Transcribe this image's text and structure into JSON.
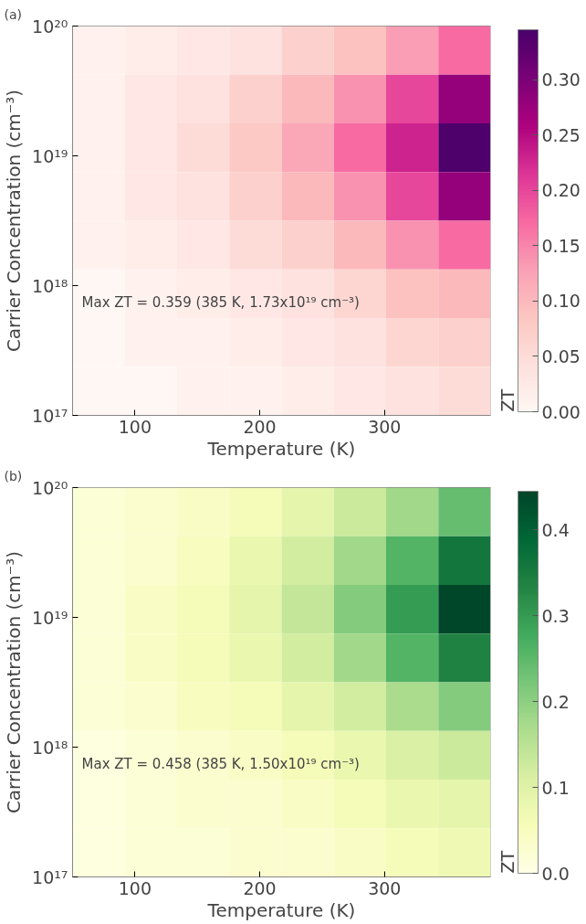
{
  "chart_data": [
    {
      "type": "heatmap",
      "title": "(a)",
      "xlabel": "Temperature (K)",
      "ylabel": "Carrier Concentration (cm⁻³)",
      "clabel": "ZT",
      "cells": [
        [
          0.01,
          0.02,
          0.03,
          0.04,
          0.07,
          0.09,
          0.13,
          0.17
        ],
        [
          0.01,
          0.03,
          0.04,
          0.07,
          0.1,
          0.14,
          0.2,
          0.28
        ],
        [
          0.01,
          0.03,
          0.05,
          0.08,
          0.12,
          0.17,
          0.23,
          0.34
        ],
        [
          0.01,
          0.03,
          0.04,
          0.07,
          0.1,
          0.14,
          0.2,
          0.28
        ],
        [
          0.01,
          0.02,
          0.03,
          0.05,
          0.07,
          0.1,
          0.14,
          0.17
        ],
        [
          0.0,
          0.01,
          0.02,
          0.03,
          0.04,
          0.06,
          0.09,
          0.1
        ],
        [
          0.0,
          0.01,
          0.01,
          0.02,
          0.03,
          0.04,
          0.06,
          0.07
        ],
        [
          0.0,
          0.0,
          0.01,
          0.01,
          0.02,
          0.03,
          0.04,
          0.05
        ]
      ],
      "xlim": [
        50,
        385
      ],
      "xticks": [
        100,
        200,
        300
      ],
      "ylim": [
        1e+17,
        1e+20
      ],
      "log": "y",
      "yticks": [
        {
          "value": 1e+17,
          "label": "10¹⁷"
        },
        {
          "value": 1e+18,
          "label": "10¹⁸"
        },
        {
          "value": 1e+19,
          "label": "10¹⁹"
        },
        {
          "value": 1e+20,
          "label": "10²⁰"
        }
      ],
      "clim": [
        0,
        0.345
      ],
      "cticks": [
        {
          "value": 0,
          "label": "0.00"
        },
        {
          "value": 0.05,
          "label": "0.05"
        },
        {
          "value": 0.1,
          "label": "0.10"
        },
        {
          "value": 0.15,
          "label": "0.15"
        },
        {
          "value": 0.2,
          "label": "0.20"
        },
        {
          "value": 0.25,
          "label": "0.25"
        },
        {
          "value": 0.3,
          "label": "0.30"
        }
      ],
      "annotations": [
        "Max ZT = 0.359 (385 K, 1.73x10¹⁹ cm⁻³)"
      ],
      "grid": false
    },
    {
      "type": "heatmap",
      "title": "(b)",
      "xlabel": "Temperature (K)",
      "ylabel": "Carrier Concentration (cm⁻³)",
      "clabel": "ZT",
      "cells": [
        [
          0.02,
          0.03,
          0.04,
          0.06,
          0.09,
          0.13,
          0.18,
          0.24
        ],
        [
          0.02,
          0.03,
          0.05,
          0.08,
          0.12,
          0.18,
          0.26,
          0.36
        ],
        [
          0.02,
          0.04,
          0.06,
          0.09,
          0.14,
          0.21,
          0.3,
          0.44
        ],
        [
          0.02,
          0.04,
          0.06,
          0.08,
          0.12,
          0.18,
          0.26,
          0.34
        ],
        [
          0.02,
          0.03,
          0.05,
          0.06,
          0.09,
          0.12,
          0.17,
          0.21
        ],
        [
          0.01,
          0.02,
          0.03,
          0.04,
          0.06,
          0.08,
          0.11,
          0.13
        ],
        [
          0.01,
          0.02,
          0.03,
          0.03,
          0.04,
          0.06,
          0.08,
          0.09
        ],
        [
          0.01,
          0.02,
          0.02,
          0.03,
          0.03,
          0.04,
          0.06,
          0.07
        ]
      ],
      "xlim": [
        50,
        385
      ],
      "xticks": [
        100,
        200,
        300
      ],
      "ylim": [
        1e+17,
        1e+20
      ],
      "log": "y",
      "yticks": [
        {
          "value": 1e+17,
          "label": "10¹⁷"
        },
        {
          "value": 1e+18,
          "label": "10¹⁸"
        },
        {
          "value": 1e+19,
          "label": "10¹⁹"
        },
        {
          "value": 1e+20,
          "label": "10²⁰"
        }
      ],
      "clim": [
        0,
        0.445
      ],
      "cticks": [
        {
          "value": 0,
          "label": "0.0"
        },
        {
          "value": 0.1,
          "label": "0.1"
        },
        {
          "value": 0.2,
          "label": "0.2"
        },
        {
          "value": 0.3,
          "label": "0.3"
        },
        {
          "value": 0.4,
          "label": "0.4"
        }
      ],
      "annotations": [
        "Max ZT = 0.458 (385 K, 1.50x10¹⁹ cm⁻³)"
      ],
      "grid": false
    }
  ]
}
